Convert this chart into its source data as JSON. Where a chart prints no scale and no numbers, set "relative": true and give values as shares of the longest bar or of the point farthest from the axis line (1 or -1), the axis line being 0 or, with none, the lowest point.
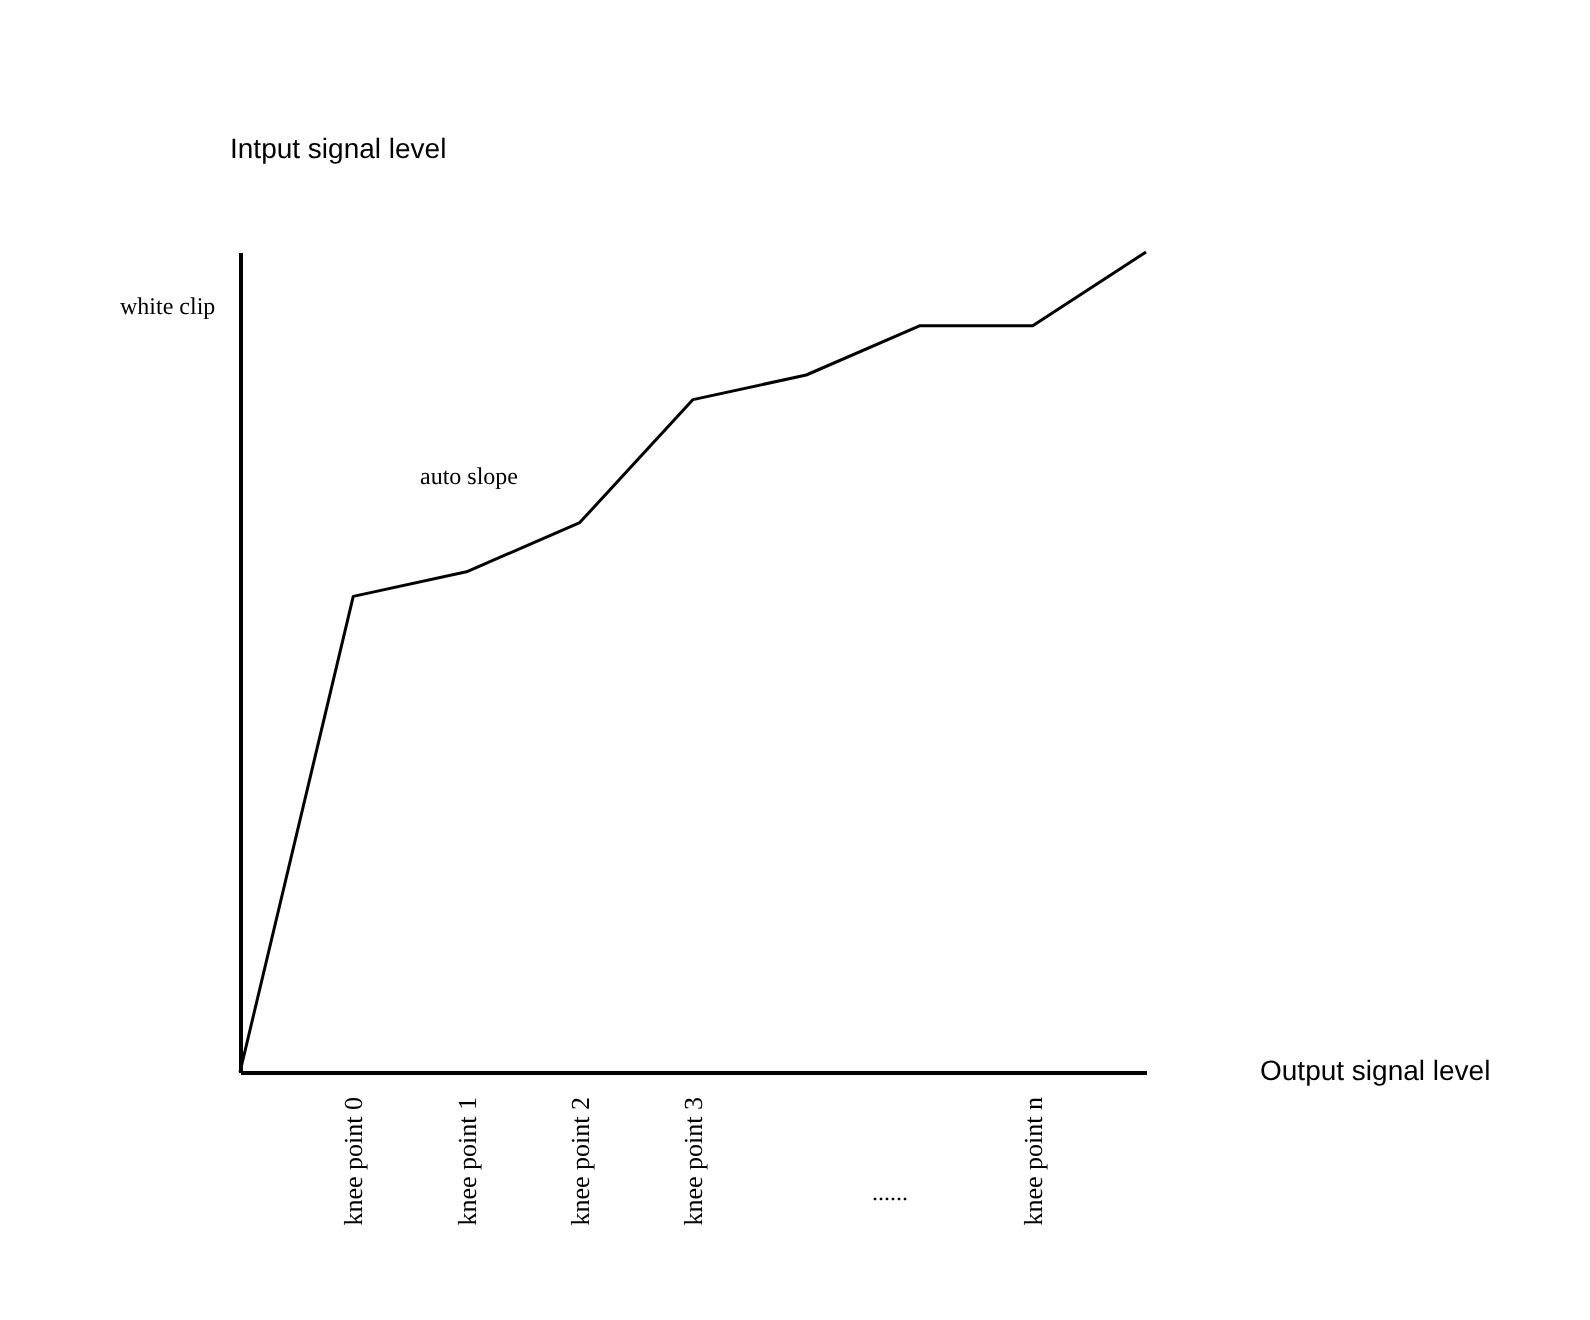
{
  "chart_data": {
    "type": "line",
    "relative": true,
    "xlabel": "Output signal level",
    "ylabel": "Intput signal level",
    "categories": [
      null,
      "knee point 0",
      "knee point 1",
      "knee point 2",
      "knee point 3",
      null,
      null,
      "knee point n",
      null
    ],
    "series": [
      {
        "color": "#000000",
        "values": [
          0,
          0.58,
          0.61,
          0.67,
          0.82,
          0.85,
          0.91,
          0.91,
          1
        ]
      }
    ],
    "annotations": [
      "white clip",
      "auto slope",
      "......"
    ],
    "marker": "none",
    "line_style": "solid",
    "grid": false
  }
}
